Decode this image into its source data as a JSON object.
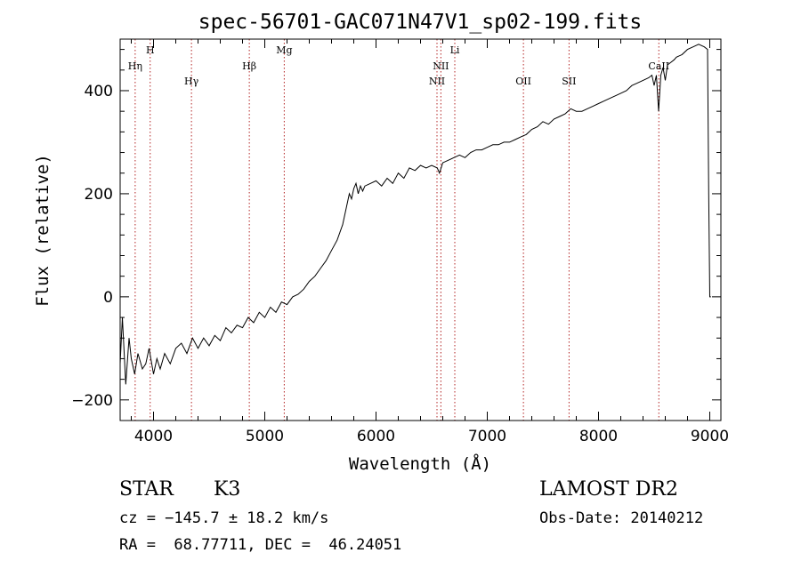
{
  "chart_data": {
    "type": "line",
    "title": "spec-56701-GAC071N47V1_sp02-199.fits",
    "xlabel": "Wavelength (Å)",
    "ylabel": "Flux (relative)",
    "xlim": [
      3700,
      9100
    ],
    "ylim": [
      -240,
      500
    ],
    "x_ticks": [
      4000,
      5000,
      6000,
      7000,
      8000,
      9000
    ],
    "y_ticks": [
      -200,
      0,
      200,
      400
    ],
    "grid": false,
    "series": [
      {
        "x": [
          3700,
          3720,
          3750,
          3780,
          3800,
          3830,
          3860,
          3900,
          3930,
          3960,
          4000,
          4030,
          4060,
          4100,
          4150,
          4200,
          4250,
          4300,
          4350,
          4400,
          4450,
          4500,
          4550,
          4600,
          4650,
          4700,
          4750,
          4800,
          4850,
          4900,
          4950,
          5000,
          5050,
          5100,
          5150,
          5200,
          5250,
          5300,
          5350,
          5400,
          5450,
          5500,
          5550,
          5600,
          5650,
          5700,
          5720,
          5740,
          5760,
          5780,
          5800,
          5820,
          5840,
          5860,
          5880,
          5900,
          5950,
          6000,
          6050,
          6100,
          6150,
          6200,
          6250,
          6300,
          6350,
          6400,
          6450,
          6500,
          6550,
          6570,
          6600,
          6650,
          6700,
          6750,
          6800,
          6850,
          6900,
          6950,
          7000,
          7050,
          7100,
          7150,
          7200,
          7250,
          7300,
          7350,
          7400,
          7450,
          7500,
          7550,
          7600,
          7650,
          7700,
          7750,
          7800,
          7850,
          7900,
          7950,
          8000,
          8050,
          8100,
          8150,
          8200,
          8250,
          8300,
          8350,
          8400,
          8450,
          8480,
          8500,
          8520,
          8540,
          8560,
          8580,
          8600,
          8620,
          8650,
          8680,
          8700,
          8750,
          8800,
          8850,
          8900,
          8950,
          8980,
          8990,
          9000,
          9010
        ],
        "y": [
          -130,
          -40,
          -170,
          -80,
          -120,
          -150,
          -110,
          -140,
          -130,
          -100,
          -150,
          -120,
          -140,
          -110,
          -130,
          -100,
          -90,
          -110,
          -80,
          -100,
          -80,
          -95,
          -75,
          -85,
          -60,
          -70,
          -55,
          -60,
          -40,
          -50,
          -30,
          -40,
          -20,
          -30,
          -10,
          -15,
          0,
          5,
          15,
          30,
          40,
          55,
          70,
          90,
          110,
          140,
          160,
          180,
          200,
          190,
          210,
          220,
          200,
          215,
          205,
          215,
          220,
          225,
          215,
          230,
          220,
          240,
          230,
          250,
          245,
          255,
          250,
          255,
          250,
          240,
          260,
          265,
          270,
          275,
          270,
          280,
          285,
          285,
          290,
          295,
          295,
          300,
          300,
          305,
          310,
          315,
          325,
          330,
          340,
          335,
          345,
          350,
          355,
          365,
          360,
          360,
          365,
          370,
          375,
          380,
          385,
          390,
          395,
          400,
          410,
          415,
          420,
          425,
          430,
          410,
          430,
          360,
          430,
          445,
          420,
          450,
          455,
          460,
          465,
          470,
          480,
          485,
          490,
          485,
          480,
          200,
          0,
          0
        ]
      }
    ]
  },
  "lines": [
    {
      "name": "Hη",
      "wave": 3835,
      "row": 1
    },
    {
      "name": "H",
      "wave": 3970,
      "row": 0
    },
    {
      "name": "Hγ",
      "wave": 4341,
      "row": 2
    },
    {
      "name": "Hβ",
      "wave": 4861,
      "row": 1
    },
    {
      "name": "Mg",
      "wave": 5175,
      "row": 0
    },
    {
      "name": "NII",
      "wave": 6548,
      "row": 2
    },
    {
      "name": "NII",
      "wave": 6583,
      "row": 1
    },
    {
      "name": "Li",
      "wave": 6708,
      "row": 0
    },
    {
      "name": "OII",
      "wave": 7325,
      "row": 2
    },
    {
      "name": "SII",
      "wave": 7735,
      "row": 2
    },
    {
      "name": "CaII",
      "wave": 8542,
      "row": 1
    }
  ],
  "info": {
    "object_class": "STAR",
    "subclass": "K3",
    "survey": "LAMOST DR2",
    "cz": "cz = −145.7 ± 18.2 km/s",
    "obs_date": "Obs-Date: 20140212",
    "coords": "RA =  68.77711, DEC =  46.24051"
  }
}
